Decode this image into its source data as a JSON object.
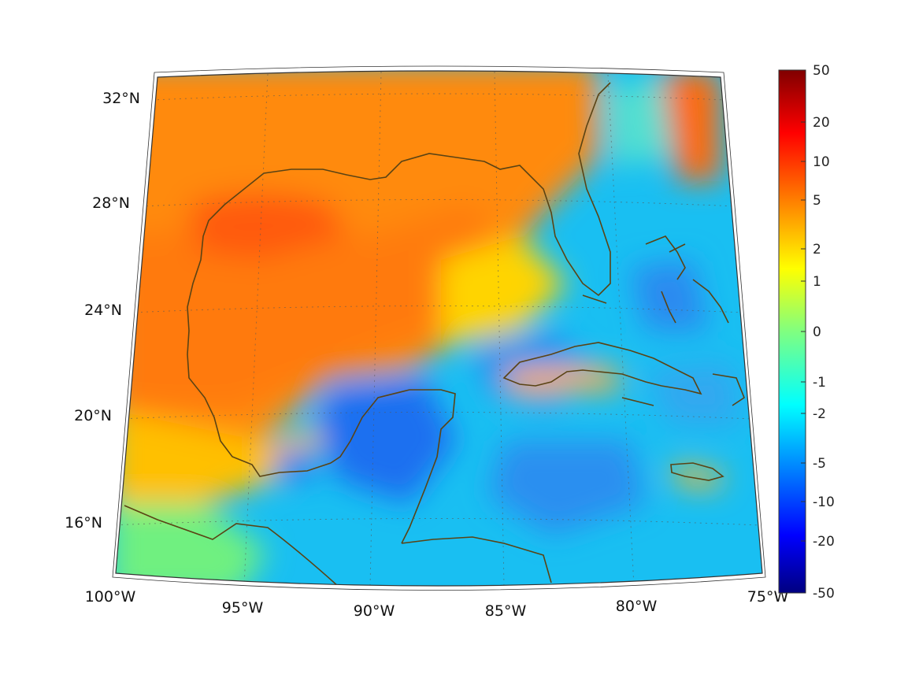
{
  "map": {
    "projection": "conic",
    "lon_range": [
      -100,
      -75
    ],
    "lat_range": [
      14,
      33
    ],
    "lon_labels": [
      "100°W",
      "95°W",
      "90°W",
      "85°W",
      "80°W",
      "75°W"
    ],
    "lat_labels": [
      "32°N",
      "28°N",
      "24°N",
      "20°N",
      "16°N"
    ],
    "coastline_color": "#5a4314",
    "grid": "dotted"
  },
  "colorbar": {
    "colormap": "jet",
    "scale": "symmetric-log",
    "tick_labels": [
      "50",
      "20",
      "10",
      "5",
      "2",
      "1",
      "0",
      "-1",
      "-2",
      "-5",
      "-10",
      "-20",
      "-50"
    ],
    "range": [
      -50,
      50
    ]
  }
}
